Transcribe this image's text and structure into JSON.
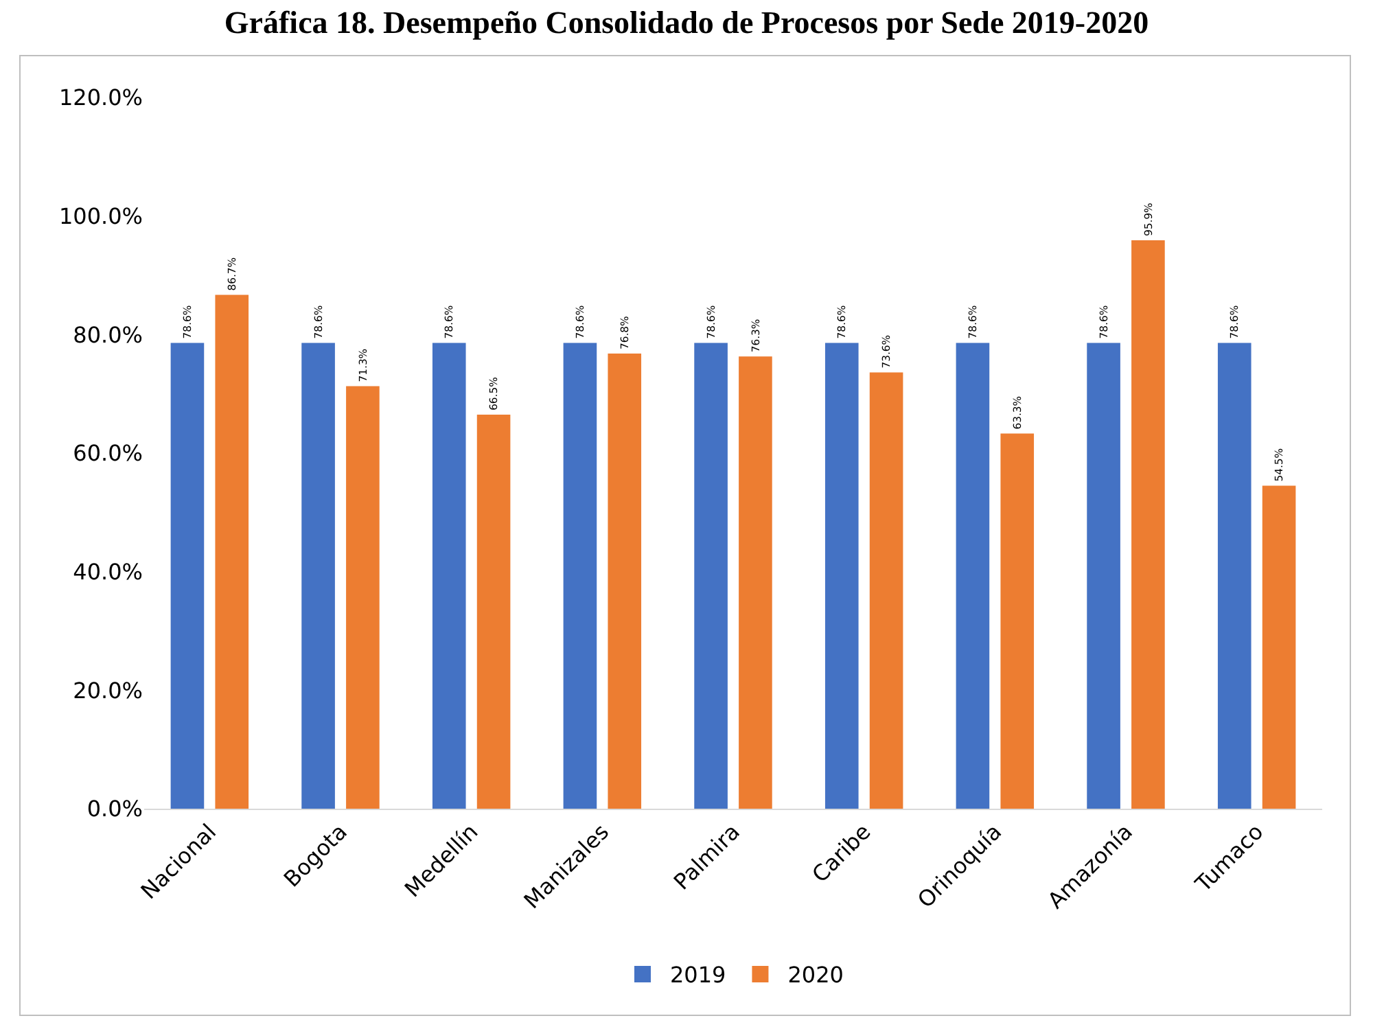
{
  "chart_data": {
    "type": "bar",
    "title": "Gráfica 18. Desempeño Consolidado de Procesos por Sede 2019-2020",
    "categories": [
      "Nacional",
      "Bogota",
      "Medellín",
      "Manizales",
      "Palmira",
      "Caribe",
      "Orinoquía",
      "Amazonía",
      "Tumaco"
    ],
    "series": [
      {
        "name": "2019",
        "color": "#4472c4",
        "values": [
          78.6,
          78.6,
          78.6,
          78.6,
          78.6,
          78.6,
          78.6,
          78.6,
          78.6
        ],
        "value_labels": [
          "78.6%",
          "78.6%",
          "78.6%",
          "78.6%",
          "78.6%",
          "78.6%",
          "78.6%",
          "78.6%",
          "78.6%"
        ]
      },
      {
        "name": "2020",
        "color": "#ed7d31",
        "values": [
          86.7,
          71.3,
          66.5,
          76.8,
          76.3,
          73.6,
          63.3,
          95.9,
          54.5
        ],
        "value_labels": [
          "86.7%",
          "71.3%",
          "66.5%",
          "76.8%",
          "76.3%",
          "73.6%",
          "63.3%",
          "95.9%",
          "54.5%"
        ]
      }
    ],
    "ylim": [
      0,
      120
    ],
    "yticks": [
      {
        "value": 0,
        "label": "0.0%"
      },
      {
        "value": 20,
        "label": "20.0%"
      },
      {
        "value": 40,
        "label": "40.0%"
      },
      {
        "value": 60,
        "label": "60.0%"
      },
      {
        "value": 80,
        "label": "80.0%"
      },
      {
        "value": 100,
        "label": "100.0%"
      },
      {
        "value": 120,
        "label": "120.0%"
      }
    ],
    "grid": false,
    "legend": "bottom"
  }
}
